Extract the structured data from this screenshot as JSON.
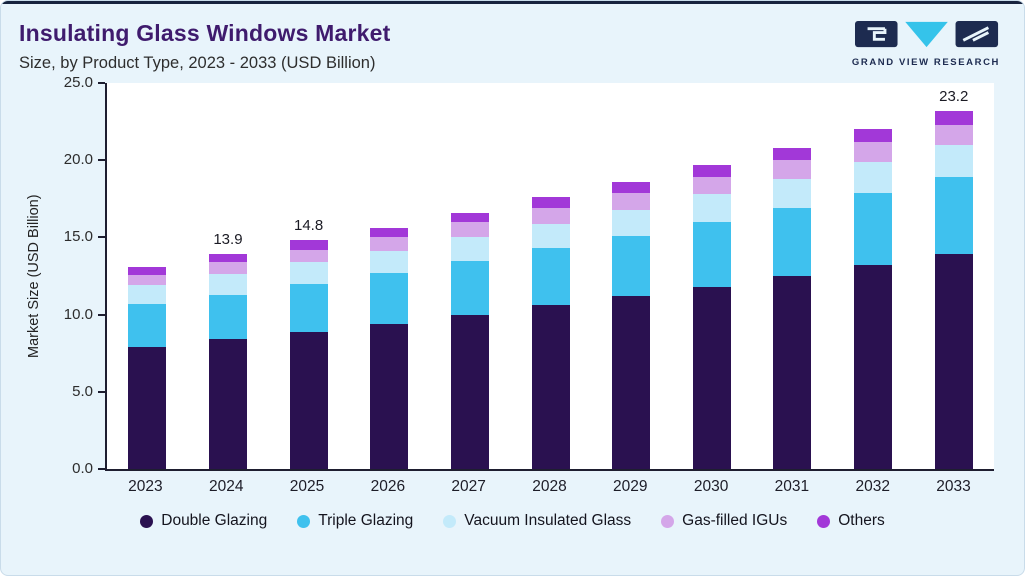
{
  "header": {
    "title": "Insulating Glass Windows Market",
    "subtitle": "Size, by Product Type, 2023 - 2033 (USD Billion)",
    "logo_text": "GRAND VIEW RESEARCH"
  },
  "colors": {
    "accent_navy": "#1d2b50",
    "accent_cyan": "#35c3ea",
    "title_purple": "#3f1b6d",
    "background": "#e8f4fb"
  },
  "chart_data": {
    "type": "bar",
    "stacked": true,
    "title": "Insulating Glass Windows Market Size, by Product Type, 2023 - 2033 (USD Billion)",
    "xlabel": "",
    "ylabel": "Market Size (USD Billion)",
    "ylim": [
      0,
      25
    ],
    "ytick_step": 5,
    "ytick_labels": [
      "0.0",
      "5.0",
      "10.0",
      "15.0",
      "20.0",
      "25.0"
    ],
    "grid": false,
    "legend_position": "bottom",
    "categories": [
      "2023",
      "2024",
      "2025",
      "2026",
      "2027",
      "2028",
      "2029",
      "2030",
      "2031",
      "2032",
      "2033"
    ],
    "series": [
      {
        "name": "Double Glazing",
        "color": "#2a1150",
        "values": [
          7.9,
          8.4,
          8.9,
          9.4,
          10.0,
          10.6,
          11.2,
          11.8,
          12.5,
          13.2,
          13.9
        ]
      },
      {
        "name": "Triple Glazing",
        "color": "#3fc1ee",
        "values": [
          2.8,
          2.9,
          3.1,
          3.3,
          3.5,
          3.7,
          3.9,
          4.2,
          4.4,
          4.7,
          5.0
        ]
      },
      {
        "name": "Vacuum Insulated Glass",
        "color": "#c3eafa",
        "values": [
          1.2,
          1.3,
          1.4,
          1.4,
          1.5,
          1.6,
          1.7,
          1.8,
          1.9,
          2.0,
          2.1
        ]
      },
      {
        "name": "Gas-filled IGUs",
        "color": "#d4a6e9",
        "values": [
          0.7,
          0.8,
          0.8,
          0.9,
          1.0,
          1.0,
          1.1,
          1.1,
          1.2,
          1.3,
          1.3
        ]
      },
      {
        "name": "Others",
        "color": "#a238d8",
        "values": [
          0.5,
          0.5,
          0.6,
          0.6,
          0.6,
          0.7,
          0.7,
          0.8,
          0.8,
          0.8,
          0.9
        ]
      }
    ],
    "bar_labels": [
      "",
      "13.9",
      "14.8",
      "",
      "",
      "",
      "",
      "",
      "",
      "",
      "23.2"
    ]
  }
}
